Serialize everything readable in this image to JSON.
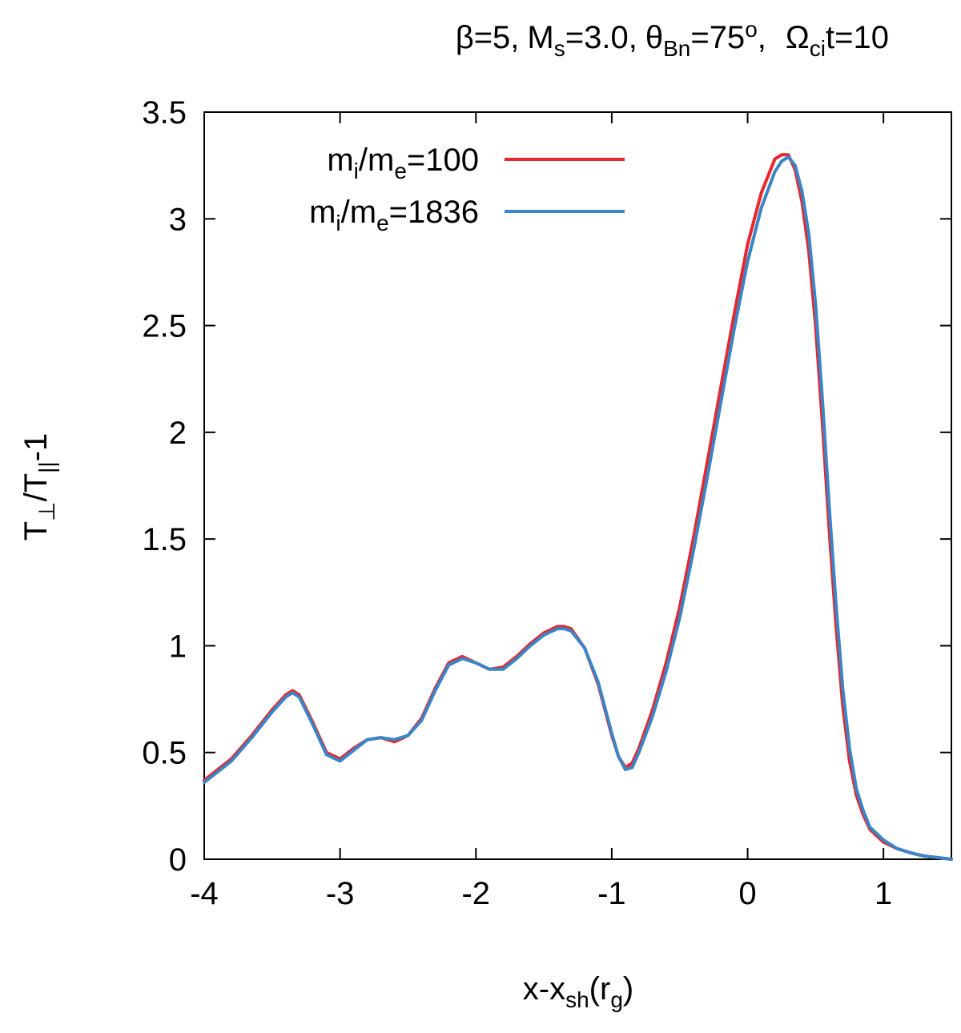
{
  "chart_data": {
    "type": "line",
    "title": {
      "beta": "β=5,",
      "ms_main": "M",
      "ms_sub": "s",
      "ms_value": "=3.0,",
      "theta_main": "θ",
      "theta_sub": "Bn",
      "theta_value": "=75",
      "theta_sup": "o",
      "theta_tail": ",",
      "omega_main": "Ω",
      "omega_sub": "ci",
      "omega_value": "t=10"
    },
    "xlabel": {
      "main": "x-x",
      "sub": "sh",
      "open": "(r",
      "sub2": "g",
      "close": ")"
    },
    "ylabel": {
      "t1": "T",
      "sub1": "⊥",
      "t2": "/T",
      "sub2": "||",
      "tail": "-1"
    },
    "xlim": [
      -4,
      1.5
    ],
    "ylim": [
      0,
      3.5
    ],
    "xticks": [
      -4,
      -3,
      -2,
      -1,
      0,
      1
    ],
    "xtick_labels": [
      "-4",
      "-3",
      "-2",
      "-1",
      "0",
      "1"
    ],
    "yticks": [
      0,
      0.5,
      1,
      1.5,
      2,
      2.5,
      3,
      3.5
    ],
    "ytick_labels": [
      "0",
      "0.5",
      "1",
      "1.5",
      "2",
      "2.5",
      "3",
      "3.5"
    ],
    "grid": false,
    "legend_position": "top-left",
    "series": [
      {
        "legend": {
          "m1": "m",
          "s1": "i",
          "m2": "/m",
          "s2": "e",
          "val": "=100"
        },
        "color": "#e8262b",
        "x": [
          -4.0,
          -3.8,
          -3.65,
          -3.5,
          -3.4,
          -3.35,
          -3.3,
          -3.2,
          -3.1,
          -3.0,
          -2.9,
          -2.8,
          -2.7,
          -2.6,
          -2.5,
          -2.4,
          -2.3,
          -2.2,
          -2.1,
          -2.0,
          -1.9,
          -1.8,
          -1.7,
          -1.6,
          -1.5,
          -1.4,
          -1.35,
          -1.3,
          -1.2,
          -1.1,
          -1.0,
          -0.95,
          -0.9,
          -0.85,
          -0.8,
          -0.7,
          -0.6,
          -0.5,
          -0.4,
          -0.3,
          -0.2,
          -0.1,
          0.0,
          0.1,
          0.2,
          0.25,
          0.3,
          0.35,
          0.4,
          0.45,
          0.5,
          0.55,
          0.6,
          0.65,
          0.7,
          0.75,
          0.8,
          0.85,
          0.9,
          1.0,
          1.1,
          1.2,
          1.3,
          1.5
        ],
        "y": [
          0.37,
          0.47,
          0.58,
          0.7,
          0.77,
          0.79,
          0.77,
          0.64,
          0.5,
          0.47,
          0.52,
          0.56,
          0.57,
          0.55,
          0.58,
          0.66,
          0.8,
          0.92,
          0.95,
          0.92,
          0.89,
          0.9,
          0.95,
          1.01,
          1.06,
          1.09,
          1.09,
          1.08,
          0.99,
          0.82,
          0.58,
          0.48,
          0.43,
          0.45,
          0.52,
          0.7,
          0.92,
          1.18,
          1.5,
          1.85,
          2.2,
          2.55,
          2.88,
          3.12,
          3.28,
          3.3,
          3.3,
          3.23,
          3.08,
          2.85,
          2.5,
          2.05,
          1.55,
          1.1,
          0.72,
          0.46,
          0.3,
          0.21,
          0.14,
          0.08,
          0.05,
          0.03,
          0.015,
          0.0
        ]
      },
      {
        "legend": {
          "m1": "m",
          "s1": "i",
          "m2": "/m",
          "s2": "e",
          "val": "=1836"
        },
        "color": "#3a85c6",
        "x": [
          -4.0,
          -3.8,
          -3.65,
          -3.5,
          -3.4,
          -3.35,
          -3.3,
          -3.2,
          -3.1,
          -3.0,
          -2.9,
          -2.8,
          -2.7,
          -2.6,
          -2.5,
          -2.4,
          -2.3,
          -2.2,
          -2.1,
          -2.0,
          -1.9,
          -1.8,
          -1.7,
          -1.6,
          -1.5,
          -1.4,
          -1.35,
          -1.3,
          -1.2,
          -1.1,
          -1.0,
          -0.95,
          -0.9,
          -0.85,
          -0.8,
          -0.7,
          -0.6,
          -0.5,
          -0.4,
          -0.3,
          -0.2,
          -0.1,
          0.0,
          0.1,
          0.2,
          0.25,
          0.3,
          0.35,
          0.4,
          0.45,
          0.5,
          0.55,
          0.6,
          0.65,
          0.7,
          0.75,
          0.8,
          0.85,
          0.9,
          1.0,
          1.1,
          1.2,
          1.3,
          1.5
        ],
        "y": [
          0.36,
          0.46,
          0.57,
          0.69,
          0.76,
          0.78,
          0.76,
          0.63,
          0.49,
          0.46,
          0.51,
          0.56,
          0.57,
          0.56,
          0.58,
          0.65,
          0.79,
          0.91,
          0.94,
          0.92,
          0.89,
          0.89,
          0.94,
          1.0,
          1.05,
          1.08,
          1.08,
          1.07,
          0.99,
          0.83,
          0.59,
          0.48,
          0.42,
          0.43,
          0.5,
          0.67,
          0.88,
          1.13,
          1.44,
          1.78,
          2.13,
          2.48,
          2.8,
          3.05,
          3.22,
          3.27,
          3.29,
          3.25,
          3.13,
          2.93,
          2.6,
          2.16,
          1.66,
          1.2,
          0.8,
          0.52,
          0.33,
          0.23,
          0.15,
          0.09,
          0.05,
          0.03,
          0.015,
          0.0
        ]
      }
    ]
  }
}
